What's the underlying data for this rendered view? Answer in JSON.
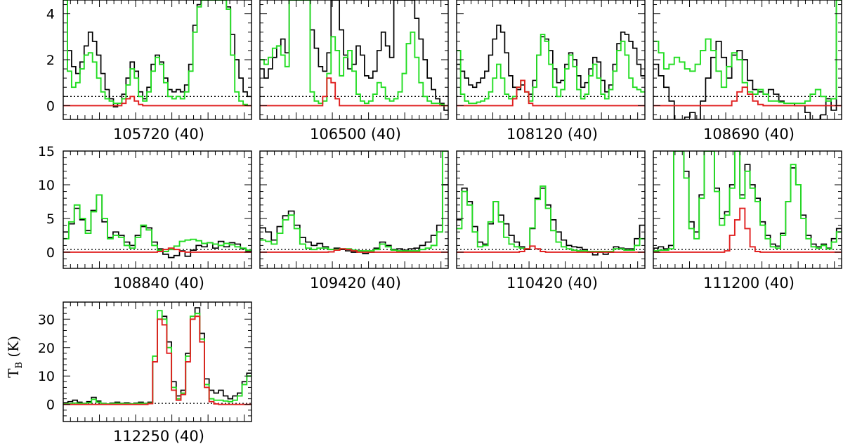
{
  "figure": {
    "ylabel_main": "T",
    "ylabel_sub": "B",
    "ylabel_unit": " (K)"
  },
  "colors": {
    "observed": "#000000",
    "model_total": "#22dd22",
    "model_species": "#e02020",
    "noise": "#000000"
  },
  "chart_data": [
    {
      "type": "line",
      "label": "105720 (40)",
      "row": 0,
      "col": 0,
      "ylim": [
        -0.6,
        4.6
      ],
      "yticks": [
        0,
        2,
        4
      ],
      "noise": 0.4,
      "observed": [
        4.6,
        2.4,
        1.7,
        1.4,
        1.9,
        2.6,
        3.2,
        2.8,
        2.2,
        1.4,
        0.7,
        0.3,
        -0.05,
        0.1,
        0.5,
        1.2,
        1.9,
        1.5,
        0.6,
        0.3,
        0.8,
        1.8,
        2.2,
        1.9,
        1.2,
        0.7,
        0.6,
        0.7,
        0.6,
        0.9,
        1.8,
        3.5,
        4.4,
        4.6,
        4.6,
        4.6,
        4.6,
        4.6,
        4.6,
        4.3,
        3.1,
        2.0,
        1.2,
        0.6,
        0.4
      ],
      "model": [
        4.6,
        1.5,
        0.8,
        1.0,
        1.6,
        2.2,
        2.3,
        1.9,
        1.2,
        0.6,
        0.3,
        0.2,
        0.1,
        0.1,
        0.3,
        0.9,
        1.6,
        1.2,
        0.4,
        0.2,
        0.6,
        1.5,
        2.1,
        1.8,
        1.0,
        0.4,
        0.3,
        0.4,
        0.3,
        0.6,
        1.5,
        3.2,
        4.3,
        4.6,
        4.6,
        4.6,
        4.6,
        4.6,
        4.6,
        4.2,
        2.2,
        0.6,
        0.2,
        0.05,
        0.0
      ],
      "species": [
        0,
        0,
        0,
        0,
        0,
        0,
        0,
        0,
        0,
        0,
        0,
        0,
        0,
        0,
        0.1,
        0.3,
        0.4,
        0.2,
        0.05,
        0,
        0,
        0,
        0,
        0,
        0,
        0,
        0,
        0,
        0,
        0,
        0,
        0,
        0,
        0,
        0,
        0,
        0,
        0,
        0,
        0,
        0,
        0,
        0,
        0,
        0
      ]
    },
    {
      "type": "line",
      "label": "106500 (40)",
      "row": 0,
      "col": 1,
      "ylim": [
        -0.6,
        4.6
      ],
      "yticks": [
        0,
        2,
        4
      ],
      "noise": 0.4,
      "observed": [
        1.6,
        1.2,
        1.6,
        2.1,
        2.6,
        2.9,
        2.3,
        4.6,
        4.6,
        4.6,
        4.6,
        4.6,
        3.3,
        2.5,
        1.7,
        1.5,
        2.3,
        4.6,
        4.6,
        3.3,
        2.2,
        1.6,
        1.8,
        2.6,
        2.2,
        1.3,
        1.2,
        1.5,
        2.4,
        3.2,
        2.6,
        2.1,
        4.6,
        4.6,
        4.6,
        4.6,
        4.6,
        3.8,
        2.9,
        2.0,
        1.2,
        0.7,
        0.3,
        0.1,
        -0.2
      ],
      "model": [
        2.0,
        1.8,
        2.1,
        2.5,
        2.6,
        2.2,
        1.7,
        4.6,
        4.6,
        4.6,
        4.6,
        4.6,
        0.6,
        0.2,
        0.1,
        0.2,
        1.4,
        3.0,
        2.4,
        1.3,
        2.1,
        2.4,
        1.5,
        0.5,
        0.2,
        0.1,
        0.2,
        0.5,
        1.0,
        0.8,
        0.3,
        0.2,
        0.3,
        0.6,
        1.4,
        2.7,
        3.2,
        2.1,
        1.0,
        0.4,
        0.2,
        0.1,
        0.1,
        0.05,
        0.0
      ],
      "species": [
        0,
        0,
        0,
        0,
        0,
        0,
        0,
        0,
        0,
        0,
        0,
        0,
        0,
        0,
        0,
        0.4,
        1.2,
        1.0,
        0.3,
        0,
        0,
        0,
        0,
        0,
        0,
        0,
        0,
        0,
        0,
        0,
        0,
        0,
        0,
        0,
        0,
        0,
        0,
        0,
        0,
        0,
        0,
        0,
        0,
        0,
        0
      ]
    },
    {
      "type": "line",
      "label": "108120 (40)",
      "row": 0,
      "col": 2,
      "ylim": [
        -0.6,
        4.6
      ],
      "yticks": [
        0,
        2,
        4
      ],
      "noise": 0.4,
      "observed": [
        1.8,
        1.5,
        1.2,
        0.9,
        0.8,
        1.0,
        1.2,
        1.5,
        2.2,
        2.9,
        3.5,
        3.2,
        2.3,
        1.3,
        0.8,
        0.7,
        0.9,
        0.6,
        0.5,
        1.1,
        2.2,
        3.0,
        2.9,
        2.4,
        1.6,
        1.0,
        1.1,
        1.8,
        2.3,
        2.0,
        1.3,
        0.8,
        1.0,
        1.6,
        2.1,
        1.9,
        1.1,
        0.6,
        0.9,
        1.8,
        2.7,
        3.2,
        3.1,
        2.8,
        2.5,
        1.8,
        1.3
      ],
      "model": [
        2.4,
        0.5,
        0.2,
        0.1,
        0.1,
        0.15,
        0.2,
        0.3,
        0.6,
        1.2,
        1.8,
        1.2,
        0.5,
        0.3,
        0.4,
        0.8,
        1.1,
        0.6,
        0.2,
        0.8,
        2.2,
        3.1,
        2.8,
        1.8,
        0.8,
        0.4,
        0.7,
        1.6,
        2.2,
        1.7,
        0.7,
        0.3,
        0.5,
        1.3,
        1.8,
        1.2,
        0.5,
        0.3,
        0.7,
        1.5,
        2.4,
        2.8,
        2.2,
        1.2,
        0.8,
        0.7,
        0.6
      ],
      "species": [
        0,
        0,
        0,
        0,
        0,
        0,
        0,
        0,
        0,
        0,
        0,
        0,
        0,
        0,
        0.3,
        0.8,
        1.1,
        0.6,
        0.1,
        0,
        0,
        0,
        0,
        0,
        0,
        0,
        0,
        0,
        0,
        0,
        0,
        0,
        0,
        0,
        0,
        0,
        0,
        0,
        0,
        0,
        0,
        0,
        0,
        0,
        0,
        0,
        0
      ]
    },
    {
      "type": "line",
      "label": "108690 (40)",
      "row": 0,
      "col": 3,
      "ylim": [
        -0.6,
        4.6
      ],
      "yticks": [
        0,
        2,
        4
      ],
      "noise": 0.4,
      "observed": [
        1.8,
        1.3,
        0.8,
        0.2,
        -0.6,
        -0.6,
        -0.5,
        -0.3,
        -0.6,
        0.2,
        1.2,
        2.1,
        2.8,
        2.1,
        1.2,
        2.2,
        2.4,
        2.0,
        1.1,
        0.7,
        0.6,
        0.5,
        0.7,
        0.5,
        0.2,
        0.1,
        0.1,
        0.0,
        0.0,
        -0.3,
        -0.6,
        -0.6,
        -0.4,
        0.3,
        -0.2,
        4.6
      ],
      "model": [
        2.8,
        2.3,
        1.6,
        1.8,
        2.1,
        1.9,
        1.6,
        1.5,
        1.8,
        2.4,
        2.9,
        2.4,
        1.5,
        0.8,
        1.7,
        2.3,
        2.0,
        1.0,
        0.6,
        0.5,
        0.7,
        0.5,
        0.2,
        0.2,
        0.15,
        0.1,
        0.1,
        0.1,
        0.1,
        0.2,
        0.5,
        0.7,
        0.4,
        0.2,
        0.3,
        4.6
      ],
      "species": [
        0,
        0,
        0,
        0,
        0,
        0,
        0,
        0,
        0,
        0,
        0,
        0,
        0,
        0,
        0,
        0.2,
        0.6,
        0.8,
        0.5,
        0.2,
        0.05,
        0,
        0,
        0,
        0,
        0,
        0,
        0,
        0,
        0,
        0,
        0,
        0,
        0,
        0,
        0
      ]
    },
    {
      "type": "line",
      "label": "108840 (40)",
      "row": 1,
      "col": 0,
      "ylim": [
        -2.4,
        15
      ],
      "yticks": [
        0,
        5,
        10,
        15
      ],
      "noise": 0.4,
      "observed": [
        3.0,
        4.2,
        6.5,
        4.8,
        3.2,
        6.2,
        8.5,
        4.5,
        2.2,
        3.0,
        2.5,
        1.5,
        1.0,
        2.5,
        3.8,
        3.6,
        1.5,
        0.5,
        -0.3,
        -0.8,
        -0.5,
        0.2,
        -0.6,
        0.3,
        1.0,
        0.8,
        1.4,
        0.6,
        1.6,
        0.8,
        1.4,
        1.2,
        0.5,
        0.2
      ],
      "model": [
        2.0,
        4.5,
        7.0,
        5.0,
        2.8,
        6.0,
        8.5,
        5.0,
        2.0,
        2.5,
        2.2,
        1.0,
        0.6,
        2.2,
        4.0,
        3.3,
        1.0,
        0.3,
        0.1,
        0.4,
        0.9,
        1.6,
        1.8,
        1.9,
        1.7,
        1.3,
        1.4,
        1.2,
        1.0,
        1.3,
        1.1,
        0.8,
        0.6,
        0.3
      ],
      "species": [
        0,
        0,
        0,
        0,
        0,
        0,
        0,
        0,
        0,
        0,
        0,
        0,
        0,
        0,
        0,
        0,
        0,
        0.1,
        0.4,
        0.6,
        0.4,
        0.1,
        0,
        0,
        0,
        0,
        0,
        0,
        0,
        0,
        0,
        0,
        0,
        0
      ]
    },
    {
      "type": "line",
      "label": "109420 (40)",
      "row": 1,
      "col": 1,
      "ylim": [
        -2.4,
        15
      ],
      "yticks": [
        0,
        5,
        10,
        15
      ],
      "noise": 0.4,
      "observed": [
        3.6,
        3.0,
        1.8,
        3.8,
        5.4,
        6.1,
        4.0,
        2.2,
        1.5,
        1.0,
        1.3,
        0.8,
        0.4,
        0.6,
        0.4,
        0.2,
        0.0,
        0.2,
        -0.2,
        0.0,
        0.6,
        1.5,
        1.0,
        0.4,
        0.5,
        0.3,
        0.5,
        0.6,
        1.0,
        1.5,
        2.5,
        4.0,
        10.0
      ],
      "model": [
        1.8,
        1.6,
        1.2,
        2.8,
        4.8,
        5.5,
        3.5,
        1.2,
        0.6,
        0.4,
        0.6,
        0.6,
        0.4,
        0.4,
        0.5,
        0.5,
        0.3,
        0.2,
        0.2,
        0.2,
        0.4,
        1.2,
        0.8,
        0.3,
        0.2,
        0.2,
        0.2,
        0.2,
        0.4,
        0.6,
        1.0,
        3.0,
        15.0
      ],
      "species": [
        0,
        0,
        0,
        0,
        0,
        0,
        0,
        0,
        0,
        0,
        0,
        0,
        0.05,
        0.3,
        0.5,
        0.4,
        0.2,
        0,
        0,
        0,
        0,
        0,
        0,
        0,
        0,
        0,
        0,
        0,
        0,
        0,
        0,
        0,
        0
      ]
    },
    {
      "type": "line",
      "label": "110420 (40)",
      "row": 1,
      "col": 2,
      "ylim": [
        -2.4,
        15
      ],
      "yticks": [
        0,
        5,
        10,
        15
      ],
      "noise": 0.4,
      "observed": [
        4.8,
        9.5,
        7.5,
        3.8,
        1.5,
        1.2,
        4.2,
        7.5,
        5.5,
        4.2,
        2.5,
        1.5,
        0.8,
        0.4,
        3.5,
        8.0,
        9.5,
        7.0,
        4.8,
        3.0,
        1.8,
        1.0,
        0.8,
        0.7,
        0.4,
        0.0,
        -0.4,
        0.0,
        -0.3,
        0.0,
        0.8,
        0.6,
        0.5,
        0.5,
        2.0,
        4.0
      ],
      "model": [
        3.5,
        9.0,
        7.0,
        3.0,
        0.8,
        1.0,
        4.5,
        7.5,
        4.5,
        2.2,
        1.2,
        0.8,
        0.6,
        0.5,
        3.6,
        7.8,
        9.8,
        6.5,
        3.2,
        1.5,
        0.8,
        0.5,
        0.3,
        0.2,
        0.2,
        0.1,
        0.1,
        0.1,
        0.1,
        0.1,
        0.5,
        0.5,
        0.3,
        0.3,
        1.0,
        2.0
      ],
      "species": [
        0,
        0,
        0,
        0,
        0,
        0,
        0,
        0,
        0,
        0,
        0,
        0,
        0.1,
        0.5,
        0.9,
        0.5,
        0.1,
        0,
        0,
        0,
        0,
        0,
        0,
        0,
        0,
        0,
        0,
        0,
        0,
        0,
        0,
        0,
        0,
        0,
        0,
        0
      ]
    },
    {
      "type": "line",
      "label": "111200 (40)",
      "row": 1,
      "col": 3,
      "ylim": [
        -2.4,
        15
      ],
      "yticks": [
        0,
        5,
        10,
        15
      ],
      "noise": 0.4,
      "observed": [
        0.6,
        0.8,
        0.5,
        1.0,
        15,
        15,
        12,
        4.5,
        3.0,
        8.5,
        15,
        15,
        9.5,
        5.0,
        6.0,
        10,
        15,
        8.5,
        13,
        10,
        8.0,
        4.5,
        2.5,
        1.2,
        0.9,
        2.8,
        7.5,
        12.5,
        10,
        5.5,
        2.5,
        1.2,
        0.8,
        1.2,
        0.6,
        2.0,
        3.5
      ],
      "model": [
        0.2,
        0.3,
        0.3,
        0.5,
        15,
        15,
        11,
        3.5,
        2.0,
        8.0,
        15,
        15,
        9.0,
        4.0,
        5.5,
        9.5,
        15,
        8.0,
        12,
        9.5,
        7.5,
        4.0,
        2.0,
        0.8,
        0.6,
        2.5,
        7.5,
        13,
        10,
        5.0,
        2.0,
        0.8,
        0.6,
        1.0,
        0.5,
        1.5,
        3.0
      ],
      "species": [
        0,
        0,
        0,
        0,
        0,
        0,
        0,
        0,
        0,
        0,
        0,
        0,
        0,
        0,
        0.2,
        2.5,
        4.8,
        6.5,
        3.5,
        0.8,
        0.1,
        0,
        0,
        0,
        0,
        0,
        0,
        0,
        0,
        0,
        0,
        0,
        0,
        0,
        0,
        0,
        0
      ]
    },
    {
      "type": "line",
      "label": "112250 (40)",
      "row": 2,
      "col": 0,
      "ylim": [
        -6,
        36
      ],
      "yticks": [
        0,
        10,
        20,
        30
      ],
      "noise": 0.4,
      "observed": [
        0.6,
        1.0,
        1.5,
        0.8,
        0.4,
        1.0,
        2.5,
        1.2,
        0.4,
        0.2,
        0.5,
        0.8,
        0.4,
        0.6,
        0.2,
        0.5,
        0.8,
        0.4,
        0.8,
        15,
        30,
        31,
        22,
        8,
        3,
        5,
        18,
        30,
        34,
        25,
        9,
        5,
        4,
        5,
        3,
        2,
        3,
        4,
        8,
        11
      ],
      "model": [
        0.2,
        0.3,
        0.5,
        0.4,
        0.3,
        0.6,
        1.8,
        0.8,
        0.3,
        0.2,
        0.3,
        0.4,
        0.3,
        0.3,
        0.2,
        0.3,
        0.4,
        0.3,
        0.5,
        17,
        33,
        30,
        20,
        6,
        2,
        4,
        17,
        31,
        32,
        23,
        7,
        2,
        1.5,
        1.5,
        1.2,
        1.0,
        1.5,
        3,
        7,
        10
      ],
      "species": [
        0,
        0,
        0,
        0,
        0,
        0,
        0,
        0,
        0,
        0,
        0,
        0,
        0,
        0,
        0,
        0,
        0,
        0,
        0.3,
        15,
        30,
        28,
        18,
        5,
        1.5,
        3.5,
        15,
        30,
        31,
        22,
        6,
        1,
        0.2,
        0,
        0,
        0,
        0,
        0,
        0,
        0
      ]
    }
  ]
}
